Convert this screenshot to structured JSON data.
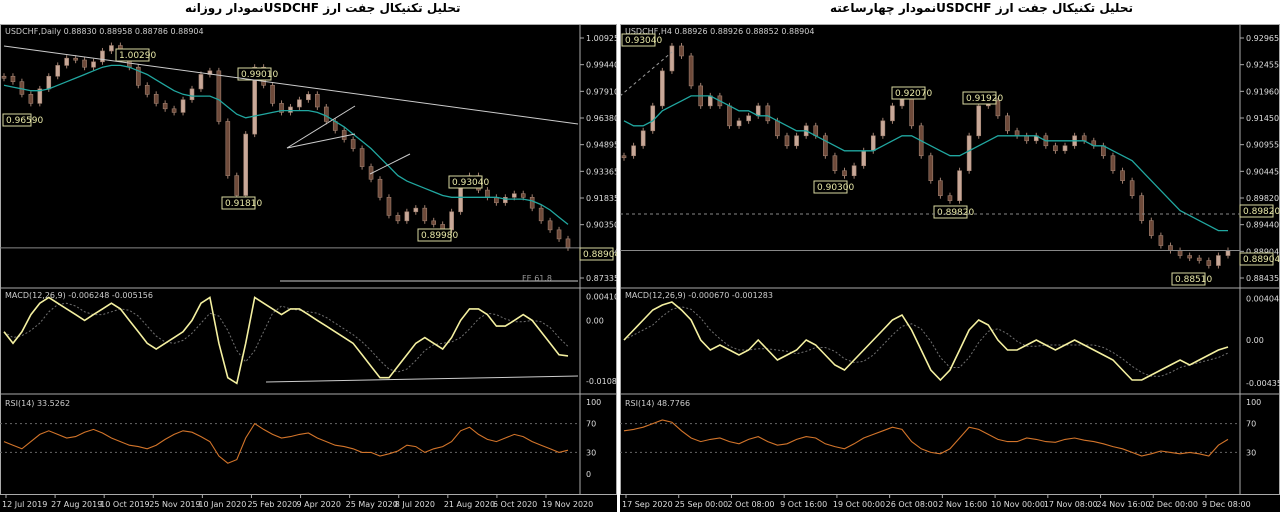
{
  "titles": {
    "daily": "تحلیل تکنیکال جفت ارز  USDCHFنمودار روزانه",
    "h4": "تحلیل تکنیکال جفت ارز  USDCHFنمودار چهارساعته"
  },
  "chart_data": [
    {
      "type": "line",
      "title": "USDCHF,Daily  0.88830 0.88958 0.88786 0.88904",
      "ylim": [
        0.87335,
        1.0095
      ],
      "price_ticks": [
        "1.00925",
        "0.99440",
        "0.97910",
        "0.96380",
        "0.94895",
        "0.93365",
        "0.91835",
        "0.90350",
        "0.88904",
        "0.87335"
      ],
      "x_tick_labels": [
        "12 Jul 2019",
        "27 Aug 2019",
        "10 Oct 2019",
        "25 Nov 2019",
        "10 Jan 2020",
        "25 Feb 2020",
        "9 Apr 2020",
        "25 May 2020",
        "8 Jul 2020",
        "21 Aug 2020",
        "6 Oct 2020",
        "19 Nov 2020"
      ],
      "price": [
        0.985,
        0.982,
        0.975,
        0.97,
        0.978,
        0.985,
        0.991,
        0.995,
        0.994,
        0.99,
        0.993,
        0.999,
        1.002,
        0.996,
        0.99,
        0.98,
        0.975,
        0.97,
        0.967,
        0.965,
        0.972,
        0.978,
        0.986,
        0.988,
        0.96,
        0.93,
        0.919,
        0.953,
        0.99,
        0.98,
        0.97,
        0.965,
        0.968,
        0.972,
        0.975,
        0.968,
        0.96,
        0.955,
        0.95,
        0.945,
        0.935,
        0.928,
        0.918,
        0.908,
        0.905,
        0.91,
        0.912,
        0.905,
        0.903,
        0.9,
        0.91,
        0.925,
        0.93,
        0.922,
        0.918,
        0.915,
        0.918,
        0.92,
        0.918,
        0.912,
        0.905,
        0.9,
        0.895,
        0.89
      ],
      "ma": [
        0.98,
        0.979,
        0.978,
        0.977,
        0.977,
        0.978,
        0.98,
        0.982,
        0.984,
        0.986,
        0.988,
        0.99,
        0.991,
        0.991,
        0.99,
        0.988,
        0.986,
        0.983,
        0.98,
        0.977,
        0.975,
        0.974,
        0.974,
        0.974,
        0.972,
        0.968,
        0.964,
        0.962,
        0.963,
        0.964,
        0.965,
        0.966,
        0.966,
        0.966,
        0.966,
        0.965,
        0.963,
        0.96,
        0.957,
        0.953,
        0.949,
        0.945,
        0.94,
        0.935,
        0.93,
        0.927,
        0.925,
        0.923,
        0.921,
        0.919,
        0.918,
        0.918,
        0.918,
        0.918,
        0.918,
        0.918,
        0.917,
        0.917,
        0.917,
        0.916,
        0.914,
        0.911,
        0.907,
        0.903
      ],
      "price_labels": [
        "0.96590",
        "1.00290",
        "0.99010",
        "0.91810",
        "0.89980",
        "0.93040",
        "0.88904"
      ],
      "fe_label": "FE 61.8",
      "macd": {
        "label": "MACD(12,26,9) -0.006248 -0.005156",
        "ticks": [
          "0.004101",
          "0.00",
          "-0.010833"
        ],
        "ylim": [
          -0.0118,
          0.0046
        ],
        "values": [
          -0.002,
          -0.004,
          -0.002,
          0.001,
          0.003,
          0.004,
          0.003,
          0.002,
          0.001,
          0.0,
          0.001,
          0.002,
          0.003,
          0.002,
          0.0,
          -0.002,
          -0.004,
          -0.005,
          -0.004,
          -0.003,
          -0.002,
          0.0,
          0.003,
          0.004,
          -0.004,
          -0.01,
          -0.011,
          -0.004,
          0.004,
          0.003,
          0.002,
          0.001,
          0.002,
          0.002,
          0.001,
          0.0,
          -0.001,
          -0.002,
          -0.003,
          -0.004,
          -0.006,
          -0.008,
          -0.01,
          -0.01,
          -0.008,
          -0.006,
          -0.004,
          -0.003,
          -0.004,
          -0.005,
          -0.003,
          0.0,
          0.002,
          0.002,
          0.001,
          -0.001,
          -0.001,
          0.0,
          0.001,
          0.0,
          -0.002,
          -0.004,
          -0.006,
          -0.0062
        ]
      },
      "rsi": {
        "label": "RSI(14) 33.5262",
        "ticks": [
          "100",
          "70",
          "30",
          "0"
        ],
        "values": [
          45,
          40,
          35,
          45,
          55,
          60,
          55,
          50,
          52,
          58,
          62,
          57,
          50,
          45,
          40,
          38,
          35,
          40,
          48,
          55,
          60,
          58,
          52,
          45,
          25,
          15,
          20,
          50,
          70,
          62,
          55,
          50,
          52,
          55,
          57,
          50,
          45,
          40,
          38,
          35,
          30,
          30,
          25,
          28,
          32,
          40,
          38,
          30,
          35,
          38,
          45,
          60,
          65,
          55,
          48,
          45,
          50,
          55,
          52,
          45,
          40,
          35,
          30,
          33
        ]
      }
    },
    {
      "type": "line",
      "title": "USDCHF,H4  0.88926 0.88926 0.88852 0.88904",
      "ylim": [
        0.8835,
        0.9328
      ],
      "price_ticks": [
        "0.92965",
        "0.92455",
        "0.91960",
        "0.91450",
        "0.90955",
        "0.90445",
        "0.89820",
        "0.89440",
        "0.88904",
        "0.88435"
      ],
      "x_tick_labels": [
        "17 Sep 2020",
        "25 Sep 00:00",
        "2 Oct 08:00",
        "9 Oct 16:00",
        "19 Oct 00:00",
        "26 Oct 08:00",
        "2 Nov 16:00",
        "10 Nov 00:00",
        "17 Nov 08:00",
        "24 Nov 16:00",
        "2 Dec 00:00",
        "9 Dec 08:00"
      ],
      "price": [
        0.908,
        0.91,
        0.913,
        0.918,
        0.925,
        0.93,
        0.928,
        0.922,
        0.918,
        0.92,
        0.918,
        0.914,
        0.915,
        0.916,
        0.918,
        0.915,
        0.912,
        0.91,
        0.912,
        0.914,
        0.912,
        0.908,
        0.905,
        0.904,
        0.906,
        0.909,
        0.912,
        0.915,
        0.918,
        0.92,
        0.914,
        0.908,
        0.903,
        0.9,
        0.899,
        0.905,
        0.912,
        0.918,
        0.919,
        0.916,
        0.913,
        0.912,
        0.911,
        0.912,
        0.91,
        0.909,
        0.91,
        0.912,
        0.911,
        0.91,
        0.908,
        0.905,
        0.903,
        0.9,
        0.895,
        0.892,
        0.89,
        0.889,
        0.888,
        0.8875,
        0.887,
        0.886,
        0.888,
        0.889
      ],
      "ma": [
        0.915,
        0.914,
        0.914,
        0.915,
        0.917,
        0.918,
        0.919,
        0.92,
        0.92,
        0.92,
        0.919,
        0.918,
        0.917,
        0.917,
        0.916,
        0.916,
        0.915,
        0.914,
        0.913,
        0.913,
        0.912,
        0.911,
        0.91,
        0.909,
        0.909,
        0.909,
        0.909,
        0.91,
        0.911,
        0.912,
        0.912,
        0.911,
        0.91,
        0.909,
        0.908,
        0.908,
        0.909,
        0.91,
        0.911,
        0.912,
        0.912,
        0.912,
        0.912,
        0.912,
        0.911,
        0.911,
        0.911,
        0.911,
        0.911,
        0.91,
        0.91,
        0.909,
        0.908,
        0.907,
        0.905,
        0.903,
        0.901,
        0.899,
        0.897,
        0.896,
        0.895,
        0.894,
        0.893,
        0.893
      ],
      "price_labels": [
        "0.93040",
        "0.92070",
        "0.91920",
        "0.90300",
        "0.89820",
        "0.88510",
        "0.89820",
        "0.88904"
      ],
      "macd": {
        "label": "MACD(12,26,9) -0.000670 -0.001283",
        "ticks": [
          "0.004048",
          "0.00",
          "-0.004351"
        ],
        "ylim": [
          -0.0048,
          0.0046
        ],
        "values": [
          0.0,
          0.001,
          0.002,
          0.003,
          0.0035,
          0.0038,
          0.003,
          0.002,
          0.0,
          -0.001,
          -0.0005,
          -0.001,
          -0.0015,
          -0.001,
          0.0,
          -0.001,
          -0.002,
          -0.0015,
          -0.001,
          0.0,
          -0.0005,
          -0.0015,
          -0.0025,
          -0.003,
          -0.002,
          -0.001,
          0.0,
          0.001,
          0.002,
          0.0025,
          0.001,
          -0.001,
          -0.003,
          -0.004,
          -0.003,
          -0.001,
          0.001,
          0.002,
          0.0015,
          0.0,
          -0.001,
          -0.001,
          -0.0005,
          0.0,
          -0.0005,
          -0.001,
          -0.0005,
          0.0,
          -0.0005,
          -0.001,
          -0.0015,
          -0.002,
          -0.003,
          -0.004,
          -0.004,
          -0.0035,
          -0.003,
          -0.0025,
          -0.002,
          -0.0025,
          -0.002,
          -0.0015,
          -0.001,
          -0.0007
        ]
      },
      "rsi": {
        "label": "RSI(14) 48.7766",
        "ticks": [
          "100",
          "70",
          "30"
        ],
        "values": [
          60,
          62,
          65,
          70,
          75,
          72,
          60,
          50,
          45,
          48,
          50,
          45,
          42,
          48,
          52,
          45,
          40,
          42,
          48,
          52,
          50,
          42,
          38,
          35,
          42,
          50,
          55,
          60,
          65,
          62,
          45,
          35,
          30,
          28,
          35,
          50,
          65,
          62,
          55,
          48,
          45,
          45,
          50,
          48,
          45,
          44,
          48,
          50,
          47,
          45,
          42,
          38,
          35,
          30,
          25,
          28,
          32,
          30,
          28,
          30,
          28,
          25,
          40,
          48
        ]
      }
    }
  ]
}
